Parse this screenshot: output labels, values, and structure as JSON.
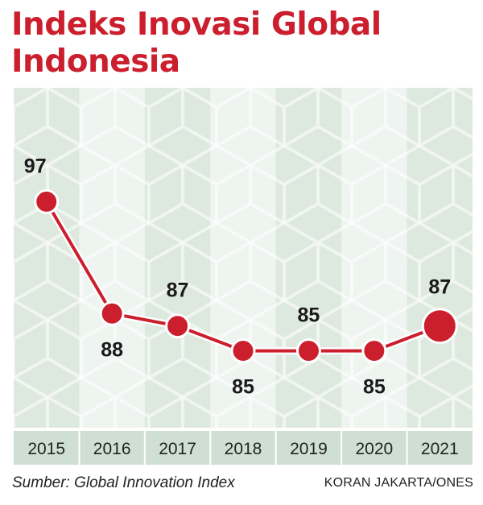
{
  "title": "Indeks Inovasi Global Indonesia",
  "source": "Sumber: Global Innovation Index",
  "credit": "KORAN JAKARTA/ONES",
  "colors": {
    "accent": "#cc1f2e",
    "band_dark": "#dde8df",
    "band_light": "#eef4ef",
    "axis_band": "#cfe0d3"
  },
  "chart_data": {
    "type": "line",
    "title": "Indeks Inovasi Global Indonesia",
    "categories": [
      "2015",
      "2016",
      "2017",
      "2018",
      "2019",
      "2020",
      "2021"
    ],
    "values": [
      97,
      88,
      87,
      85,
      85,
      85,
      87
    ],
    "y_inverted": true,
    "ylim": [
      84,
      98
    ],
    "label_position": [
      "above",
      "below",
      "above",
      "below",
      "above",
      "below",
      "above"
    ],
    "highlight_last_point": true,
    "grid": false,
    "legend": "none"
  }
}
